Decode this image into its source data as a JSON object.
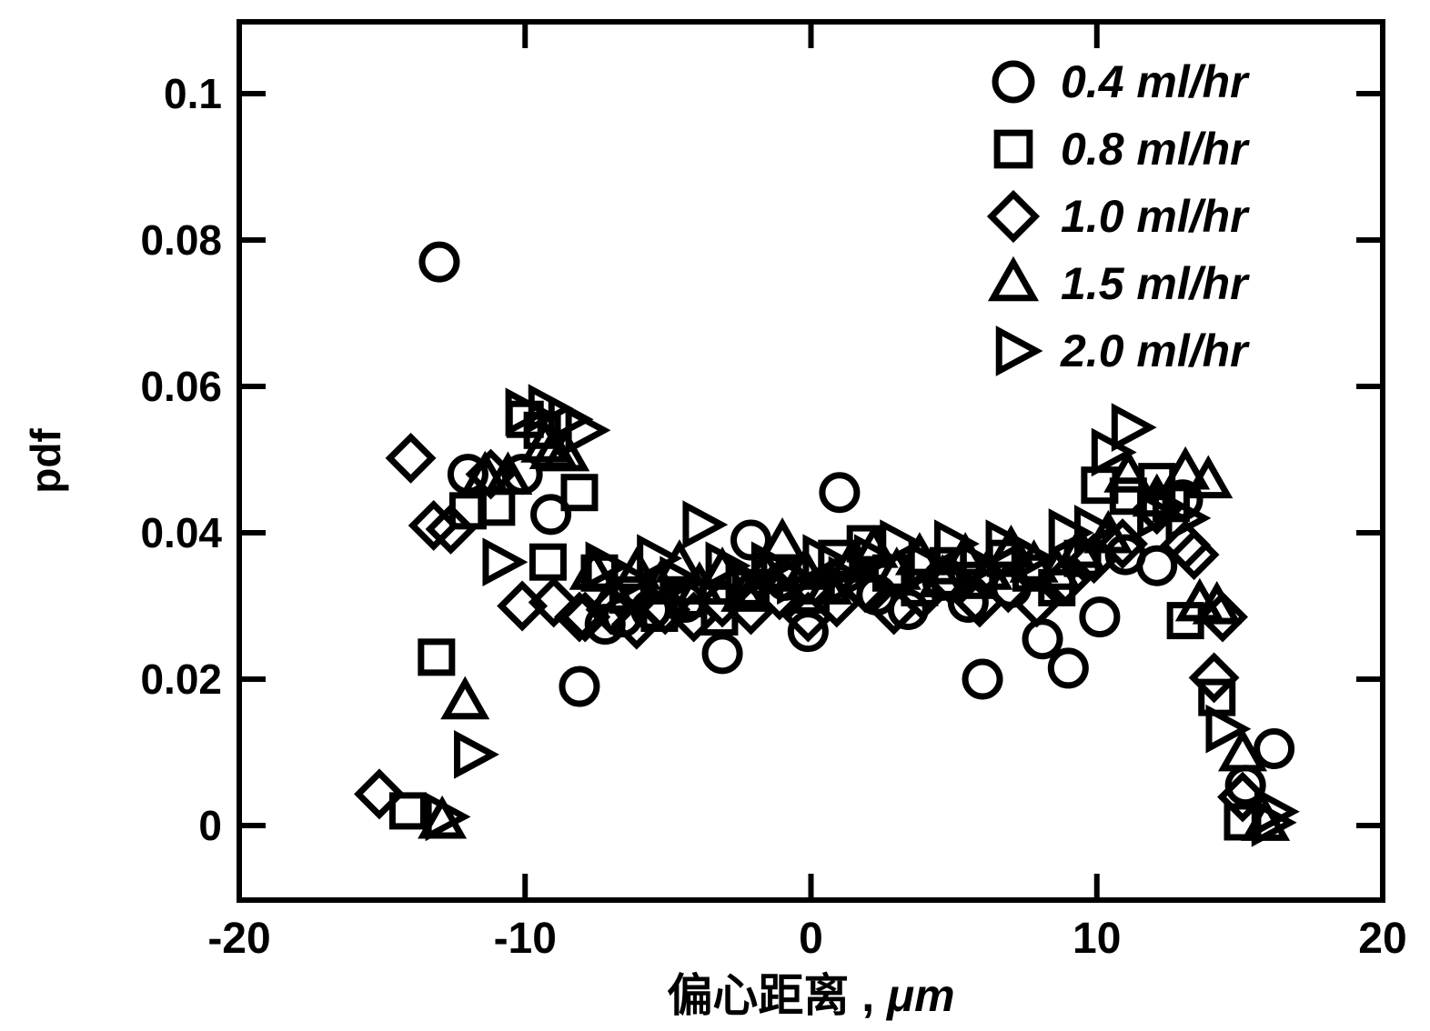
{
  "figure": {
    "background_color": "#ffffff",
    "ink_color": "#000000"
  },
  "axes": {
    "ylabel": "pdf",
    "xlabel_cjk": "偏心距离 ,",
    "xlabel_unit": "μm",
    "xlim": [
      -20,
      20
    ],
    "ylim": [
      0,
      0.1
    ],
    "xticks": [
      "-20",
      "-10",
      "0",
      "10",
      "20"
    ],
    "yticks": [
      "0",
      "0.02",
      "0.04",
      "0.06",
      "0.08",
      "0.1"
    ],
    "grid": "off"
  },
  "legend": {
    "position": "top-right",
    "entries": [
      {
        "label": "0.4 ml/hr",
        "marker": "circle"
      },
      {
        "label": "0.8 ml/hr",
        "marker": "square"
      },
      {
        "label": "1.0 ml/hr",
        "marker": "diamond"
      },
      {
        "label": "1.5 ml/hr",
        "marker": "triangle-up"
      },
      {
        "label": "2.0 ml/hr",
        "marker": "triangle-right"
      }
    ]
  },
  "chart_data": {
    "type": "scatter",
    "title": "",
    "xlabel": "偏心距离 , μm",
    "ylabel": "pdf",
    "xlim": [
      -20,
      20
    ],
    "ylim": [
      0,
      0.1
    ],
    "legend_position": "top-right",
    "series": [
      {
        "name": "0.4 ml/hr",
        "marker": "circle",
        "points": [
          [
            -13.0,
            0.077
          ],
          [
            -12.0,
            0.048
          ],
          [
            -10.1,
            0.048
          ],
          [
            -9.1,
            0.0425
          ],
          [
            -8.1,
            0.019
          ],
          [
            -7.2,
            0.0275
          ],
          [
            -6.6,
            0.0285
          ],
          [
            -5.6,
            0.0295
          ],
          [
            -4.4,
            0.0305
          ],
          [
            -3.1,
            0.0235
          ],
          [
            -2.1,
            0.039
          ],
          [
            -0.9,
            0.0335
          ],
          [
            -0.1,
            0.0265
          ],
          [
            1.0,
            0.0455
          ],
          [
            2.3,
            0.0315
          ],
          [
            3.4,
            0.0295
          ],
          [
            4.6,
            0.0335
          ],
          [
            5.5,
            0.0305
          ],
          [
            6.0,
            0.02
          ],
          [
            7.0,
            0.0325
          ],
          [
            8.1,
            0.0255
          ],
          [
            9.0,
            0.0215
          ],
          [
            10.1,
            0.0285
          ],
          [
            11.0,
            0.037
          ],
          [
            12.1,
            0.0355
          ],
          [
            13.0,
            0.0445
          ],
          [
            15.2,
            0.0055
          ],
          [
            16.2,
            0.0105
          ]
        ]
      },
      {
        "name": "0.8 ml/hr",
        "marker": "square",
        "points": [
          [
            -14.1,
            0.002
          ],
          [
            -13.1,
            0.023
          ],
          [
            -12.0,
            0.043
          ],
          [
            -11.0,
            0.0435
          ],
          [
            -10.0,
            0.0555
          ],
          [
            -9.4,
            0.054
          ],
          [
            -9.2,
            0.036
          ],
          [
            -8.1,
            0.0455
          ],
          [
            -7.4,
            0.0345
          ],
          [
            -6.4,
            0.0315
          ],
          [
            -5.3,
            0.029
          ],
          [
            -4.3,
            0.031
          ],
          [
            -3.2,
            0.0285
          ],
          [
            -2.1,
            0.0325
          ],
          [
            -1.1,
            0.0345
          ],
          [
            0.0,
            0.0315
          ],
          [
            0.9,
            0.0365
          ],
          [
            1.9,
            0.0385
          ],
          [
            2.8,
            0.0345
          ],
          [
            3.8,
            0.0325
          ],
          [
            4.8,
            0.0355
          ],
          [
            5.8,
            0.0335
          ],
          [
            6.8,
            0.0365
          ],
          [
            7.7,
            0.0345
          ],
          [
            8.6,
            0.0325
          ],
          [
            9.5,
            0.0365
          ],
          [
            10.1,
            0.0465
          ],
          [
            11.1,
            0.045
          ],
          [
            12.1,
            0.047
          ],
          [
            12.6,
            0.044
          ],
          [
            13.1,
            0.028
          ],
          [
            14.2,
            0.0175
          ],
          [
            15.1,
            0.0005
          ]
        ]
      },
      {
        "name": "1.0 ml/hr",
        "marker": "diamond",
        "points": [
          [
            -15.1,
            0.0043
          ],
          [
            -14.0,
            0.0502
          ],
          [
            -13.2,
            0.041
          ],
          [
            -12.6,
            0.0405
          ],
          [
            -11.2,
            0.048
          ],
          [
            -10.1,
            0.03
          ],
          [
            -9.0,
            0.0305
          ],
          [
            -8.1,
            0.0285
          ],
          [
            -7.9,
            0.0285
          ],
          [
            -7.0,
            0.0295
          ],
          [
            -6.1,
            0.0275
          ],
          [
            -5.1,
            0.0295
          ],
          [
            -4.1,
            0.0285
          ],
          [
            -3.1,
            0.0305
          ],
          [
            -2.1,
            0.0295
          ],
          [
            -1.1,
            0.0315
          ],
          [
            -0.1,
            0.0285
          ],
          [
            0.9,
            0.0305
          ],
          [
            1.9,
            0.0325
          ],
          [
            2.9,
            0.0295
          ],
          [
            3.9,
            0.0315
          ],
          [
            4.9,
            0.0335
          ],
          [
            5.9,
            0.0305
          ],
          [
            6.9,
            0.0325
          ],
          [
            7.9,
            0.0305
          ],
          [
            8.9,
            0.0335
          ],
          [
            9.9,
            0.0365
          ],
          [
            10.9,
            0.0385
          ],
          [
            12.1,
            0.0432
          ],
          [
            13.1,
            0.0383
          ],
          [
            13.4,
            0.037
          ],
          [
            14.1,
            0.0202
          ],
          [
            14.4,
            0.0285
          ],
          [
            15.1,
            0.0039
          ]
        ]
      },
      {
        "name": "1.5 ml/hr",
        "marker": "triangle-up",
        "points": [
          [
            -12.9,
            0.0005
          ],
          [
            -12.1,
            0.0168
          ],
          [
            -11.4,
            0.0476
          ],
          [
            -10.6,
            0.0475
          ],
          [
            -9.3,
            0.0519
          ],
          [
            -9.0,
            0.051
          ],
          [
            -8.6,
            0.0507
          ],
          [
            -7.6,
            0.0345
          ],
          [
            -6.9,
            0.0315
          ],
          [
            -6.1,
            0.0345
          ],
          [
            -5.3,
            0.0325
          ],
          [
            -4.6,
            0.0355
          ],
          [
            -3.9,
            0.0325
          ],
          [
            -3.1,
            0.0345
          ],
          [
            -2.3,
            0.0315
          ],
          [
            -1.6,
            0.0345
          ],
          [
            -1.0,
            0.0385
          ],
          [
            -0.2,
            0.0345
          ],
          [
            0.6,
            0.0325
          ],
          [
            1.4,
            0.0355
          ],
          [
            2.2,
            0.0375
          ],
          [
            3.0,
            0.0345
          ],
          [
            3.8,
            0.0365
          ],
          [
            4.6,
            0.0335
          ],
          [
            5.4,
            0.0365
          ],
          [
            6.2,
            0.0345
          ],
          [
            7.0,
            0.0375
          ],
          [
            7.8,
            0.0355
          ],
          [
            8.6,
            0.0345
          ],
          [
            9.4,
            0.0375
          ],
          [
            10.4,
            0.0395
          ],
          [
            11.1,
            0.0478
          ],
          [
            12.1,
            0.0445
          ],
          [
            13.1,
            0.0482
          ],
          [
            13.6,
            0.0302
          ],
          [
            13.9,
            0.047
          ],
          [
            14.2,
            0.0298
          ],
          [
            15.1,
            0.0097
          ],
          [
            15.9,
            0.0002
          ]
        ]
      },
      {
        "name": "2.0 ml/hr",
        "marker": "triangle-right",
        "points": [
          [
            -12.9,
            0.0012
          ],
          [
            -11.9,
            0.0097
          ],
          [
            -10.9,
            0.036
          ],
          [
            -10.1,
            0.0565
          ],
          [
            -9.3,
            0.057
          ],
          [
            -8.6,
            0.0555
          ],
          [
            -8.0,
            0.054
          ],
          [
            -7.3,
            0.0355
          ],
          [
            -6.4,
            0.0335
          ],
          [
            -5.5,
            0.0365
          ],
          [
            -4.7,
            0.0335
          ],
          [
            -3.9,
            0.0411
          ],
          [
            -3.1,
            0.0355
          ],
          [
            -2.4,
            0.0335
          ],
          [
            -1.5,
            0.0355
          ],
          [
            -0.6,
            0.0335
          ],
          [
            0.3,
            0.0365
          ],
          [
            1.2,
            0.0335
          ],
          [
            2.1,
            0.0365
          ],
          [
            3.0,
            0.0385
          ],
          [
            4.0,
            0.0355
          ],
          [
            4.9,
            0.0385
          ],
          [
            5.8,
            0.0355
          ],
          [
            6.7,
            0.0385
          ],
          [
            7.6,
            0.0365
          ],
          [
            8.9,
            0.04
          ],
          [
            9.8,
            0.0405
          ],
          [
            10.4,
            0.051
          ],
          [
            11.1,
            0.0544
          ],
          [
            12.0,
            0.0425
          ],
          [
            13.0,
            0.042
          ],
          [
            14.4,
            0.0132
          ],
          [
            16.0,
            0.0004
          ],
          [
            16.1,
            0.0019
          ]
        ]
      }
    ]
  }
}
